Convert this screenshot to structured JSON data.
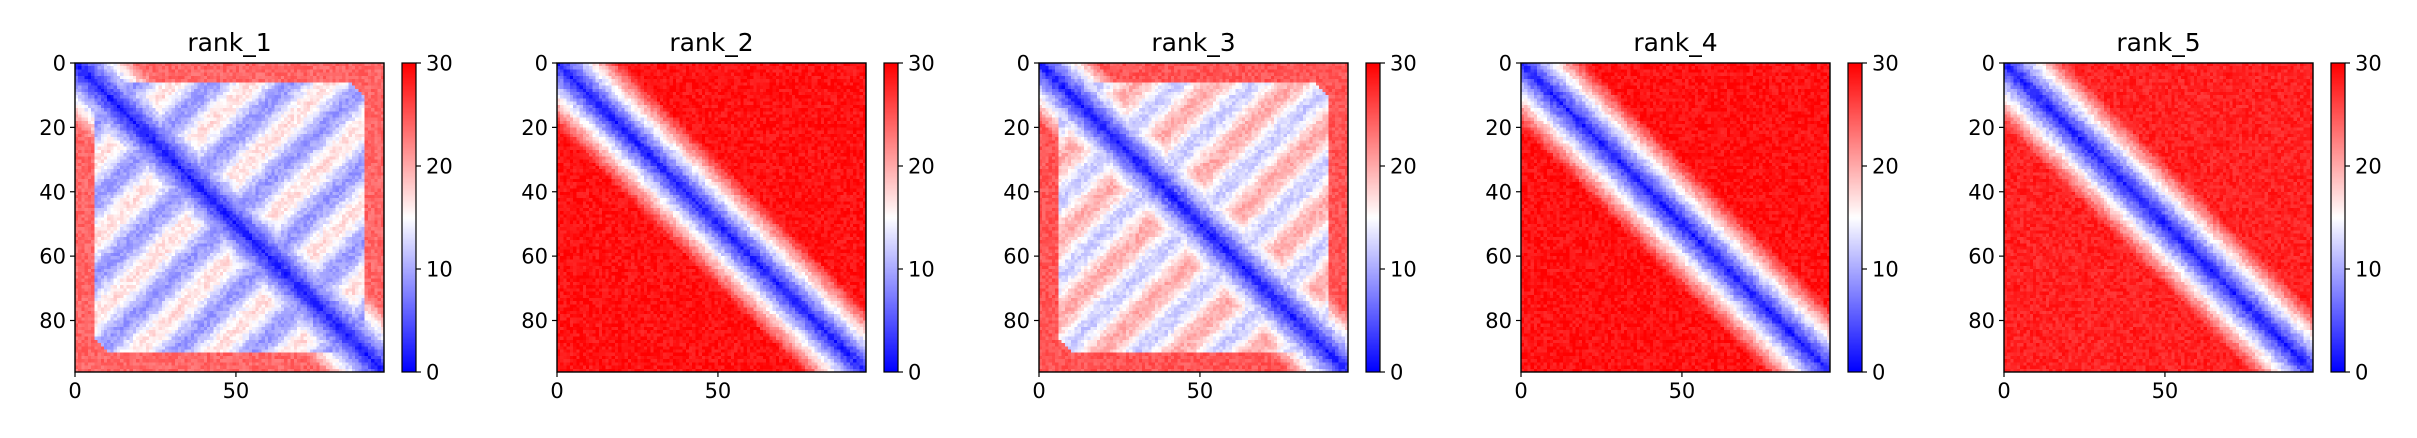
{
  "figure": {
    "colormap": "bwr",
    "colors": {
      "low": "#0000ff",
      "mid": "#ffffff",
      "high": "#ff0000",
      "axis": "#000000"
    }
  },
  "chart_data": [
    {
      "type": "heatmap",
      "title": "rank_1",
      "matrix_size": 96,
      "xlim": [
        0,
        96
      ],
      "ylim": [
        96,
        0
      ],
      "xticks": [
        0,
        50
      ],
      "yticks": [
        0,
        20,
        40,
        60,
        80
      ],
      "colorbar": {
        "min": 0,
        "max": 30,
        "ticks": [
          0,
          10,
          20,
          30
        ]
      },
      "pattern": {
        "diag_scale": 0.38,
        "background": 24,
        "cross_contact_blocks": true,
        "lowered_background": 15
      }
    },
    {
      "type": "heatmap",
      "title": "rank_2",
      "matrix_size": 96,
      "xlim": [
        0,
        96
      ],
      "ylim": [
        96,
        0
      ],
      "xticks": [
        0,
        50
      ],
      "yticks": [
        0,
        20,
        40,
        60,
        80
      ],
      "colorbar": {
        "min": 0,
        "max": 30,
        "ticks": [
          0,
          10,
          20,
          30
        ]
      },
      "pattern": {
        "diag_scale": 0.45,
        "background": 29,
        "cross_contact_blocks": false,
        "lowered_background": 0
      }
    },
    {
      "type": "heatmap",
      "title": "rank_3",
      "matrix_size": 96,
      "xlim": [
        0,
        96
      ],
      "ylim": [
        96,
        0
      ],
      "xticks": [
        0,
        50
      ],
      "yticks": [
        0,
        20,
        40,
        60,
        80
      ],
      "colorbar": {
        "min": 0,
        "max": 30,
        "ticks": [
          0,
          10,
          20,
          30
        ]
      },
      "pattern": {
        "diag_scale": 0.42,
        "background": 25,
        "cross_contact_blocks": true,
        "lowered_background": 18
      }
    },
    {
      "type": "heatmap",
      "title": "rank_4",
      "matrix_size": 96,
      "xlim": [
        0,
        96
      ],
      "ylim": [
        96,
        0
      ],
      "xticks": [
        0,
        50
      ],
      "yticks": [
        0,
        20,
        40,
        60,
        80
      ],
      "colorbar": {
        "min": 0,
        "max": 30,
        "ticks": [
          0,
          10,
          20,
          30
        ]
      },
      "pattern": {
        "diag_scale": 0.45,
        "background": 29,
        "cross_contact_blocks": false,
        "lowered_background": 0
      }
    },
    {
      "type": "heatmap",
      "title": "rank_5",
      "matrix_size": 96,
      "xlim": [
        0,
        96
      ],
      "ylim": [
        96,
        0
      ],
      "xticks": [
        0,
        50
      ],
      "yticks": [
        0,
        20,
        40,
        60,
        80
      ],
      "colorbar": {
        "min": 0,
        "max": 30,
        "ticks": [
          0,
          10,
          20,
          30
        ]
      },
      "pattern": {
        "diag_scale": 0.45,
        "background": 28,
        "cross_contact_blocks": false,
        "lowered_background": 0
      }
    }
  ]
}
